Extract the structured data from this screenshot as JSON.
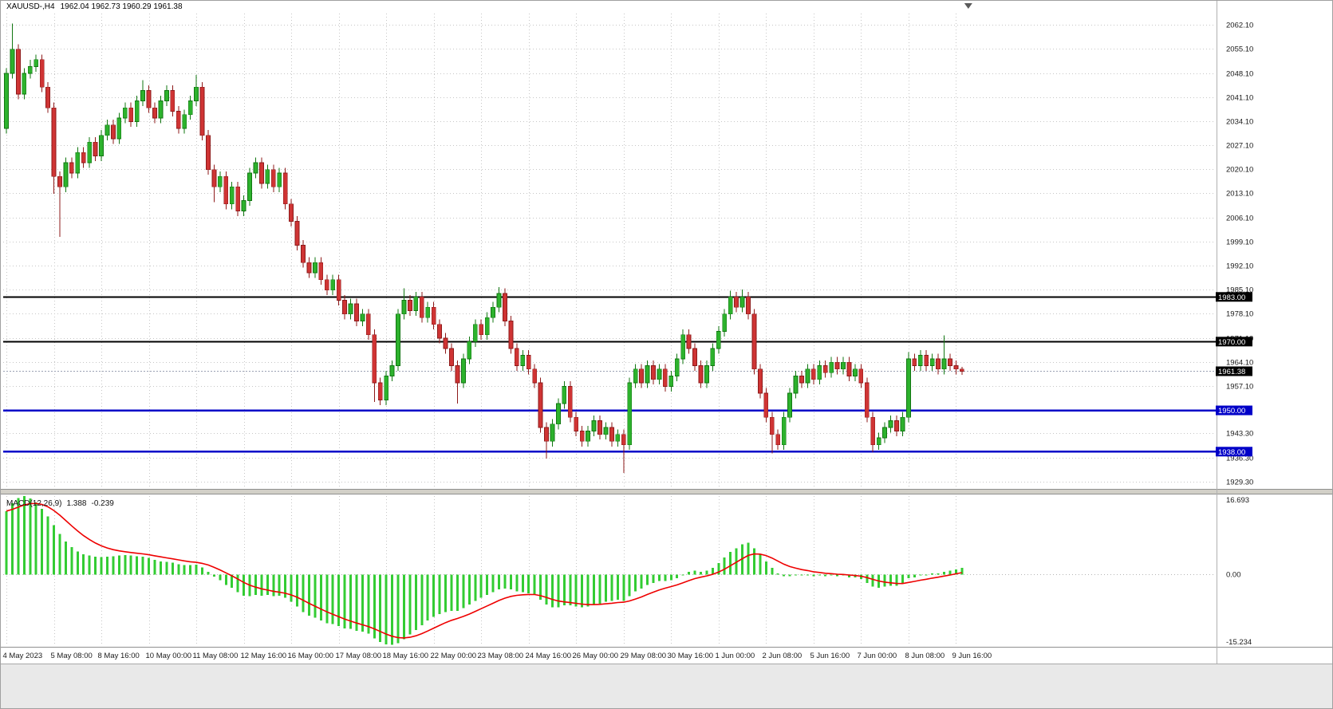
{
  "header": {
    "symbol": "XAUUSD-,H4",
    "ohlc": "1962.04 1962.73 1960.29 1961.38"
  },
  "macd_header": {
    "name": "MACD(12,26,9)",
    "macd_value": "1.388",
    "signal_value": "-0.239"
  },
  "colors": {
    "bull_fill": "#2db22d",
    "bull_stroke": "#117711",
    "bear_fill": "#cf3434",
    "bear_stroke": "#8e1a1a",
    "macd_hist": "#33cc33",
    "signal_line": "#ee0000",
    "grid": "#c6c6c6",
    "black_line": "#000000",
    "blue_line": "#0000c8",
    "bid_line": "#9aa0b4",
    "axis_text": "#1a1a1a",
    "splitter": "#d2d0c8",
    "bottom_band": "#e9e9e9"
  },
  "chart_data": {
    "type": "candlestick",
    "symbol": "XAUUSD-",
    "timeframe": "H4",
    "current_price": 1961.38,
    "current_bar_ohlc": {
      "open": 1962.04,
      "high": 1962.73,
      "low": 1960.29,
      "close": 1961.38
    },
    "ylim": [
      1927.4,
      2065.4
    ],
    "price_axis": {
      "ticks": [
        [
          2062.1,
          "2062.10"
        ],
        [
          2055.1,
          "2055.10"
        ],
        [
          2048.1,
          "2048.10"
        ],
        [
          2041.1,
          "2041.10"
        ],
        [
          2034.1,
          "2034.10"
        ],
        [
          2027.1,
          "2027.10"
        ],
        [
          2020.1,
          "2020.10"
        ],
        [
          2013.1,
          "2013.10"
        ],
        [
          2006.1,
          "2006.10"
        ],
        [
          1999.1,
          "1999.10"
        ],
        [
          1992.1,
          "1992.10"
        ],
        [
          1985.1,
          "1985.10"
        ],
        [
          1978.1,
          "1978.10"
        ],
        [
          1971.1,
          "1971.10"
        ],
        [
          1964.1,
          "1964.10"
        ],
        [
          1957.1,
          "1957.10"
        ],
        [
          1950.1,
          ""
        ],
        [
          1943.3,
          "1943.30"
        ],
        [
          1936.3,
          "1936.30"
        ],
        [
          1929.3,
          "1929.30"
        ]
      ],
      "highlighted": [
        {
          "label": "1983.00",
          "price": 1983.0,
          "bg": "#000000"
        },
        {
          "label": "1970.00",
          "price": 1970.0,
          "bg": "#000000"
        },
        {
          "label": "1961.38",
          "price": 1961.38,
          "bg": "#000000"
        },
        {
          "label": "1950.00",
          "price": 1950.0,
          "bg": "#0000c8"
        },
        {
          "label": "1938.00",
          "price": 1938.0,
          "bg": "#0000c8"
        }
      ]
    },
    "hlines": [
      {
        "price": 1983.0,
        "color": "#000000",
        "width": 2
      },
      {
        "price": 1970.0,
        "color": "#000000",
        "width": 2
      },
      {
        "price": 1950.0,
        "color": "#0000c8",
        "width": 2.5
      },
      {
        "price": 1938.0,
        "color": "#0000c8",
        "width": 2.5
      }
    ],
    "bid_line": {
      "price": 1961.38
    },
    "time_axis": [
      {
        "bar": 0,
        "label": "4 May 2023"
      },
      {
        "bar": 8,
        "label": "5 May 08:00"
      },
      {
        "bar": 16,
        "label": "8 May 16:00"
      },
      {
        "bar": 24,
        "label": "10 May 00:00"
      },
      {
        "bar": 32,
        "label": "11 May 08:00"
      },
      {
        "bar": 40,
        "label": "12 May 16:00"
      },
      {
        "bar": 48,
        "label": "16 May 00:00"
      },
      {
        "bar": 56,
        "label": "17 May 08:00"
      },
      {
        "bar": 64,
        "label": "18 May 16:00"
      },
      {
        "bar": 72,
        "label": "22 May 00:00"
      },
      {
        "bar": 80,
        "label": "23 May 08:00"
      },
      {
        "bar": 88,
        "label": "24 May 16:00"
      },
      {
        "bar": 96,
        "label": "26 May 00:00"
      },
      {
        "bar": 104,
        "label": "29 May 08:00"
      },
      {
        "bar": 112,
        "label": "30 May 16:00"
      },
      {
        "bar": 120,
        "label": "1 Jun 00:00"
      },
      {
        "bar": 128,
        "label": "2 Jun 08:00"
      },
      {
        "bar": 136,
        "label": "5 Jun 16:00"
      },
      {
        "bar": 144,
        "label": "7 Jun 00:00"
      },
      {
        "bar": 152,
        "label": "8 Jun 08:00"
      },
      {
        "bar": 160,
        "label": "9 Jun 16:00"
      }
    ],
    "candles": [
      [
        2032,
        2049.5,
        2030.5,
        2048
      ],
      [
        2048,
        2062.5,
        2046.5,
        2055
      ],
      [
        2055,
        2056.5,
        2040.5,
        2042
      ],
      [
        2042,
        2049.5,
        2040.5,
        2048
      ],
      [
        2048,
        2052,
        2046.5,
        2050
      ],
      [
        2050,
        2053.5,
        2048.5,
        2052
      ],
      [
        2052,
        2053.5,
        2042.5,
        2044
      ],
      [
        2044,
        2045.5,
        2036.5,
        2038
      ],
      [
        2038,
        2039.5,
        2013,
        2018
      ],
      [
        2018,
        2019.5,
        2000.5,
        2015
      ],
      [
        2015,
        2023.5,
        2013.5,
        2022
      ],
      [
        2022,
        2023.5,
        2017.5,
        2019
      ],
      [
        2019,
        2026.5,
        2017.5,
        2025
      ],
      [
        2025,
        2026.5,
        2020.5,
        2022
      ],
      [
        2022,
        2029.5,
        2020.5,
        2028
      ],
      [
        2028,
        2029.5,
        2022.5,
        2024
      ],
      [
        2024,
        2031.5,
        2022.5,
        2030
      ],
      [
        2030,
        2034.5,
        2028.5,
        2033
      ],
      [
        2033,
        2034.5,
        2027.5,
        2029
      ],
      [
        2029,
        2036.5,
        2027.5,
        2035
      ],
      [
        2035,
        2039.5,
        2033.5,
        2038
      ],
      [
        2038,
        2039.5,
        2032.5,
        2034
      ],
      [
        2034,
        2041.5,
        2032.5,
        2040
      ],
      [
        2040,
        2046,
        2038.5,
        2043
      ],
      [
        2043,
        2044.5,
        2036.5,
        2038
      ],
      [
        2038,
        2039.5,
        2033.5,
        2035
      ],
      [
        2035,
        2041.5,
        2033.5,
        2040
      ],
      [
        2040,
        2044.5,
        2038.5,
        2043
      ],
      [
        2043,
        2044.5,
        2035.5,
        2037
      ],
      [
        2037,
        2038.5,
        2030.5,
        2032
      ],
      [
        2032,
        2037.5,
        2030.5,
        2036
      ],
      [
        2036,
        2041.5,
        2034.5,
        2040
      ],
      [
        2040,
        2047.5,
        2038.5,
        2044
      ],
      [
        2044,
        2045.5,
        2028.5,
        2030
      ],
      [
        2030,
        2031.5,
        2018.5,
        2020
      ],
      [
        2020,
        2021.5,
        2010.5,
        2015
      ],
      [
        2015,
        2019.5,
        2013.5,
        2018
      ],
      [
        2018,
        2019.5,
        2008.5,
        2010
      ],
      [
        2010,
        2016.5,
        2008.5,
        2015
      ],
      [
        2015,
        2016.5,
        2006.5,
        2008
      ],
      [
        2008,
        2012.5,
        2006.5,
        2011
      ],
      [
        2011,
        2020.5,
        2009.5,
        2019
      ],
      [
        2019,
        2023.5,
        2017.5,
        2022
      ],
      [
        2022,
        2023.5,
        2014.5,
        2016
      ],
      [
        2016,
        2021.5,
        2014.5,
        2020
      ],
      [
        2020,
        2021.5,
        2013.5,
        2015
      ],
      [
        2015,
        2020.5,
        2013.5,
        2019
      ],
      [
        2019,
        2020.5,
        2008.5,
        2010
      ],
      [
        2010,
        2011.5,
        2003.5,
        2005
      ],
      [
        2005,
        2006.5,
        1996.5,
        1998
      ],
      [
        1998,
        1999.5,
        1991.5,
        1993
      ],
      [
        1993,
        1994.5,
        1988.5,
        1990
      ],
      [
        1990,
        1994.5,
        1988.5,
        1993
      ],
      [
        1993,
        1994.5,
        1986.5,
        1988
      ],
      [
        1988,
        1989.5,
        1983.5,
        1985
      ],
      [
        1985,
        1989.5,
        1983.5,
        1988
      ],
      [
        1988,
        1989.5,
        1980.5,
        1982
      ],
      [
        1982,
        1983.5,
        1976.5,
        1978
      ],
      [
        1978,
        1982.5,
        1976.5,
        1981
      ],
      [
        1981,
        1982.5,
        1974.5,
        1976
      ],
      [
        1976,
        1979.5,
        1974.5,
        1978
      ],
      [
        1978,
        1979.5,
        1970.5,
        1972
      ],
      [
        1972,
        1973.5,
        1952.5,
        1958
      ],
      [
        1958,
        1959.5,
        1951.5,
        1953
      ],
      [
        1953,
        1961.5,
        1951.5,
        1960
      ],
      [
        1960,
        1964.5,
        1958.5,
        1963
      ],
      [
        1963,
        1979.5,
        1961.5,
        1978
      ],
      [
        1978,
        1985.5,
        1976.5,
        1982
      ],
      [
        1982,
        1983.5,
        1977.5,
        1979
      ],
      [
        1979,
        1984.5,
        1977.5,
        1983
      ],
      [
        1983,
        1984.5,
        1975.5,
        1977
      ],
      [
        1977,
        1981.5,
        1975.5,
        1980
      ],
      [
        1980,
        1981.5,
        1973.5,
        1975
      ],
      [
        1975,
        1976.5,
        1969.5,
        1971
      ],
      [
        1971,
        1972.5,
        1966.5,
        1968
      ],
      [
        1968,
        1969.5,
        1961.5,
        1963
      ],
      [
        1963,
        1964.5,
        1952,
        1958
      ],
      [
        1958,
        1966.5,
        1956.5,
        1965
      ],
      [
        1965,
        1971.5,
        1963.5,
        1970
      ],
      [
        1970,
        1976.5,
        1968.5,
        1975
      ],
      [
        1975,
        1976.5,
        1970.5,
        1972
      ],
      [
        1972,
        1978.5,
        1970.5,
        1977
      ],
      [
        1977,
        1981.5,
        1975.5,
        1980
      ],
      [
        1980,
        1985.8,
        1978.5,
        1984
      ],
      [
        1984,
        1985.5,
        1974.5,
        1976
      ],
      [
        1976,
        1977.5,
        1966.5,
        1968
      ],
      [
        1968,
        1969.5,
        1961.5,
        1963
      ],
      [
        1963,
        1967.5,
        1961.5,
        1966
      ],
      [
        1966,
        1967.5,
        1960.5,
        1962
      ],
      [
        1962,
        1963.5,
        1956.5,
        1958
      ],
      [
        1958,
        1959.5,
        1943.5,
        1945
      ],
      [
        1945,
        1946.5,
        1936,
        1941
      ],
      [
        1941,
        1947.5,
        1939.5,
        1946
      ],
      [
        1946,
        1953.5,
        1944.5,
        1952
      ],
      [
        1952,
        1958.5,
        1950.5,
        1957
      ],
      [
        1957,
        1958.5,
        1946.5,
        1948
      ],
      [
        1948,
        1949.5,
        1942.5,
        1944
      ],
      [
        1944,
        1945.5,
        1939.5,
        1941
      ],
      [
        1941,
        1945.5,
        1939.5,
        1944
      ],
      [
        1944,
        1948.5,
        1942.5,
        1947
      ],
      [
        1947,
        1948.5,
        1941.5,
        1943
      ],
      [
        1943,
        1946.5,
        1941.5,
        1945
      ],
      [
        1945,
        1946.5,
        1939.5,
        1941
      ],
      [
        1941,
        1944.5,
        1939.5,
        1943
      ],
      [
        1943,
        1944.5,
        1931.8,
        1940
      ],
      [
        1940,
        1959.5,
        1938.5,
        1958
      ],
      [
        1958,
        1963.5,
        1956.5,
        1962
      ],
      [
        1962,
        1963.5,
        1956.5,
        1958
      ],
      [
        1958,
        1964.5,
        1956.5,
        1963
      ],
      [
        1963,
        1964.5,
        1957.5,
        1959
      ],
      [
        1959,
        1963.5,
        1957.5,
        1962
      ],
      [
        1962,
        1963.5,
        1955.5,
        1957
      ],
      [
        1957,
        1961.5,
        1955.5,
        1960
      ],
      [
        1960,
        1966.5,
        1958.5,
        1965
      ],
      [
        1965,
        1973.5,
        1963.5,
        1972
      ],
      [
        1972,
        1973.5,
        1966.5,
        1968
      ],
      [
        1968,
        1969.5,
        1961.5,
        1963
      ],
      [
        1963,
        1964.5,
        1956.5,
        1958
      ],
      [
        1958,
        1964.5,
        1956.5,
        1963
      ],
      [
        1963,
        1969.5,
        1961.5,
        1968
      ],
      [
        1968,
        1974.5,
        1966.5,
        1973
      ],
      [
        1973,
        1979.5,
        1971.5,
        1978
      ],
      [
        1978,
        1984.8,
        1976.5,
        1983
      ],
      [
        1983,
        1984.5,
        1978.5,
        1980
      ],
      [
        1980,
        1985.2,
        1978.5,
        1983
      ],
      [
        1983,
        1984.5,
        1976.5,
        1978
      ],
      [
        1978,
        1979.5,
        1960.5,
        1962
      ],
      [
        1962,
        1963.5,
        1953.5,
        1955
      ],
      [
        1955,
        1956.5,
        1946.5,
        1948
      ],
      [
        1948,
        1949.5,
        1937.5,
        1943
      ],
      [
        1943,
        1944.5,
        1938.5,
        1940
      ],
      [
        1940,
        1949.5,
        1938.5,
        1948
      ],
      [
        1948,
        1956.5,
        1946.5,
        1955
      ],
      [
        1955,
        1961.5,
        1953.5,
        1960
      ],
      [
        1960,
        1961.5,
        1956.5,
        1958
      ],
      [
        1958,
        1963.5,
        1956.5,
        1962
      ],
      [
        1962,
        1963.5,
        1957.5,
        1959
      ],
      [
        1959,
        1964.5,
        1957.5,
        1963
      ],
      [
        1963,
        1964.5,
        1959.5,
        1961
      ],
      [
        1961,
        1965.5,
        1959.5,
        1964
      ],
      [
        1964,
        1965.5,
        1960.5,
        1962
      ],
      [
        1962,
        1965.5,
        1960.5,
        1964
      ],
      [
        1964,
        1965.5,
        1958.5,
        1960
      ],
      [
        1960,
        1963.5,
        1958.5,
        1962
      ],
      [
        1962,
        1963.5,
        1956.5,
        1958
      ],
      [
        1958,
        1959.5,
        1946.5,
        1948
      ],
      [
        1948,
        1949.5,
        1937.8,
        1940
      ],
      [
        1940,
        1943.5,
        1938.5,
        1942
      ],
      [
        1942,
        1946.5,
        1940.5,
        1945
      ],
      [
        1945,
        1948.5,
        1943.5,
        1947
      ],
      [
        1947,
        1948.5,
        1942.5,
        1944
      ],
      [
        1944,
        1949.5,
        1942.5,
        1948
      ],
      [
        1948,
        1967,
        1946.5,
        1965
      ],
      [
        1965,
        1966.5,
        1961.5,
        1963
      ],
      [
        1963,
        1967.5,
        1961.5,
        1966
      ],
      [
        1966,
        1967.5,
        1961.5,
        1963
      ],
      [
        1963,
        1966.5,
        1961.5,
        1965
      ],
      [
        1965,
        1966.5,
        1960.5,
        1962
      ],
      [
        1962,
        1971.8,
        1960.5,
        1965
      ],
      [
        1965,
        1966.5,
        1961.5,
        1963
      ],
      [
        1963,
        1964.5,
        1960.5,
        1962
      ],
      [
        1962,
        1962.7,
        1960.3,
        1961.4
      ]
    ],
    "macd": {
      "label": "MACD(12,26,9)",
      "macd_value": 1.388,
      "signal_value": -0.239,
      "scale_max": 16.693,
      "scale_min": -15.234,
      "scale_labels": [
        "16.693",
        "0.00",
        "-15.234"
      ],
      "values": [
        13.5,
        15.2,
        16.3,
        16.7,
        16.2,
        15.3,
        14,
        12.4,
        10.5,
        8.6,
        7,
        5.8,
        4.9,
        4.3,
        4,
        3.8,
        3.7,
        3.8,
        3.9,
        4,
        4.1,
        4,
        3.9,
        3.8,
        3.5,
        3.1,
        2.8,
        2.7,
        2.5,
        2.2,
        2,
        2,
        2.1,
        1.5,
        0.6,
        -0.5,
        -1.2,
        -2.2,
        -2.8,
        -3.8,
        -4.5,
        -4.6,
        -4.4,
        -4.5,
        -4.4,
        -4.6,
        -4.5,
        -5,
        -5.8,
        -6.8,
        -8,
        -8.8,
        -9.2,
        -9.8,
        -10.4,
        -10.6,
        -11,
        -11.5,
        -11.6,
        -12,
        -12.2,
        -12.6,
        -13.6,
        -14.4,
        -14.9,
        -15,
        -14.6,
        -13.8,
        -12.8,
        -11.8,
        -10.8,
        -9.8,
        -9,
        -8.4,
        -8,
        -7.8,
        -7.8,
        -7.2,
        -6.4,
        -5.6,
        -5,
        -4.4,
        -3.8,
        -3.2,
        -3,
        -3.2,
        -3.6,
        -3.8,
        -4,
        -4.4,
        -5.4,
        -6.4,
        -7,
        -7,
        -6.6,
        -6.6,
        -6.8,
        -7,
        -6.8,
        -6.4,
        -6.2,
        -5.8,
        -5.6,
        -5.4,
        -5.6,
        -4.6,
        -3.6,
        -3,
        -2.2,
        -1.8,
        -1.4,
        -1.4,
        -1.2,
        -0.8,
        0,
        0.6,
        0.8,
        0.6,
        0.8,
        1.4,
        2.4,
        3.6,
        4.8,
        5.6,
        6.4,
        6.8,
        5.6,
        4.2,
        2.8,
        1.4,
        0.2,
        -0.4,
        -0.4,
        0,
        -0.2,
        0,
        -0.4,
        -0.2,
        -0.4,
        -0.2,
        -0.4,
        -0.2,
        -0.6,
        -0.6,
        -1,
        -1.8,
        -2.6,
        -2.8,
        -2.6,
        -2.4,
        -2.4,
        -2,
        -0.8,
        -0.6,
        -0.2,
        -0.2,
        0.2,
        0.2,
        0.6,
        0.8,
        1.1,
        1.4
      ]
    }
  }
}
